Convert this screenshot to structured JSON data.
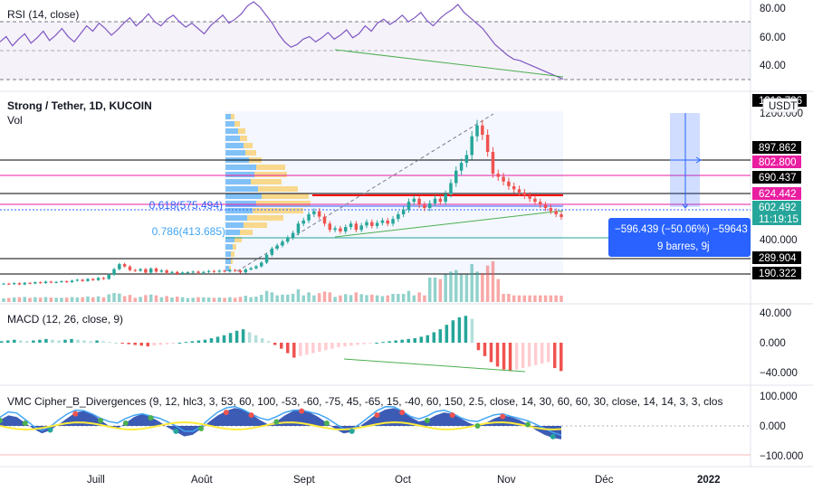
{
  "symbol_title": "Strong / Tether, 1D, KUCOIN",
  "volume_label": "Vol",
  "rsi": {
    "label": "RSI (14, close)",
    "axis_ticks": [
      "80.00",
      "60.00",
      "40.00"
    ],
    "levels": [
      70,
      50,
      30
    ]
  },
  "price_axis": {
    "ticks": [
      "1200.000",
      "400.000"
    ],
    "currency": "USDT",
    "top_partial": "1310.726"
  },
  "price_tags": [
    {
      "value": "897.862",
      "bg": "#000000"
    },
    {
      "value": "802.800",
      "bg": "#e91ea0"
    },
    {
      "value": "690.437",
      "bg": "#000000"
    },
    {
      "value": "624.442",
      "bg": "#e91ea0"
    },
    {
      "value": "289.904",
      "bg": "#000000"
    },
    {
      "value": "190.322",
      "bg": "#000000"
    }
  ],
  "current_price": {
    "value": "602.492",
    "countdown": "11:19:15",
    "bg": "#26a69a"
  },
  "fib_levels": [
    {
      "label": "0.618(575.494)",
      "color": "#2962ff"
    },
    {
      "label": "0.786(413.685)",
      "color": "#42a5f5"
    }
  ],
  "measure_tooltip": {
    "line1": "−596.439 (−50.06%) −59643",
    "line2": "9 barres, 9j"
  },
  "macd": {
    "label": "MACD (12, 26, close, 9)",
    "axis_ticks": [
      "40.000",
      "0.000",
      "−40.000"
    ]
  },
  "cipher": {
    "label": "VMC Cipher_B_Divergences (9, 12, hlc3, 3, 53, 60, 100, -53, -60, -75, 45, -65, 15, -40, 60, 150, 2.5, close, 14, 30, 60, 60, 30, close, 14, 14, 3, 3, clos",
    "axis_ticks": [
      "100.000",
      "0.000",
      "−100.000"
    ]
  },
  "time_axis": [
    "Juill",
    "Août",
    "Sept",
    "Oct",
    "Nov",
    "Déc",
    "2022"
  ],
  "colors": {
    "up": "#26a69a",
    "down": "#ef5350",
    "rsi_line": "#7e57c2",
    "divergence": "#4caf50",
    "magenta": "#e91ea0",
    "fib_red": "#ff0000"
  },
  "chart_data": [
    {
      "type": "line",
      "title": "RSI (14, close)",
      "ylim": [
        27,
        88
      ],
      "series": [
        {
          "values": [
            58,
            62,
            55,
            60,
            64,
            57,
            61,
            66,
            59,
            63,
            68,
            62,
            58,
            64,
            70,
            66,
            72,
            68,
            63,
            67,
            72,
            76,
            70,
            74,
            79,
            73,
            70,
            75,
            78,
            73,
            69,
            72,
            68,
            64,
            70,
            74,
            78,
            72,
            75,
            79,
            85,
            88,
            84,
            78,
            72,
            64,
            58,
            54,
            56,
            60,
            62,
            58,
            61,
            65,
            60,
            63,
            67,
            61,
            64,
            70,
            66,
            72,
            75,
            71,
            74,
            78,
            73,
            76,
            80,
            74,
            70,
            75,
            79,
            82,
            86,
            80,
            76,
            72,
            68,
            62,
            56,
            52,
            48,
            45,
            44,
            42,
            40,
            38,
            36,
            34,
            32,
            30
          ]
        }
      ]
    },
    {
      "type": "line",
      "title": "Strong / Tether, 1D, KUCOIN",
      "ylim": [
        150,
        1310
      ],
      "series": [
        {
          "values": [
            175,
            172,
            178,
            170,
            180,
            176,
            184,
            179,
            188,
            182,
            186,
            190,
            185,
            194,
            200,
            192,
            205,
            198,
            212,
            205,
            232,
            268,
            300,
            285,
            262,
            258,
            268,
            246,
            272,
            252,
            260,
            244,
            250,
            238,
            246,
            248,
            252,
            244,
            250,
            256,
            252,
            258,
            254,
            262,
            258,
            248,
            266,
            274,
            286,
            310,
            360,
            400,
            420,
            445,
            470,
            500,
            560,
            580,
            620,
            640,
            605,
            560,
            520,
            530,
            510,
            538,
            560,
            520,
            548,
            570,
            545,
            565,
            580,
            560,
            590,
            620,
            650,
            700,
            720,
            680,
            660,
            690,
            720,
            700,
            750,
            820,
            900,
            950,
            1000,
            1120,
            1190,
            1130,
            1020,
            880,
            860,
            830,
            800,
            780,
            760,
            740,
            720,
            700,
            680,
            660,
            640,
            620,
            602
          ]
        }
      ]
    },
    {
      "type": "bar",
      "title": "MACD (12, 26, close, 9)",
      "ylim": [
        -50,
        50
      ],
      "series": [
        {
          "values": [
            2,
            3,
            4,
            3,
            2,
            3,
            4,
            5,
            4,
            3,
            4,
            5,
            4,
            3,
            2,
            3,
            2,
            1,
            0,
            -1,
            -2,
            -3,
            -4,
            -5,
            -4,
            -3,
            -2,
            -1,
            0,
            1,
            2,
            3,
            4,
            6,
            8,
            10,
            13,
            16,
            18,
            14,
            10,
            6,
            2,
            -3,
            -8,
            -14,
            -20,
            -18,
            -16,
            -14,
            -12,
            -10,
            -8,
            -6,
            -5,
            -4,
            -3,
            -2,
            -1,
            0,
            1,
            2,
            3,
            4,
            5,
            6,
            8,
            10,
            14,
            18,
            24,
            30,
            34,
            36,
            32,
            -10,
            -18,
            -26,
            -32,
            -36,
            -38,
            -36,
            -34,
            -32,
            -30,
            -28,
            -26,
            -34,
            -38
          ]
        }
      ]
    },
    {
      "type": "area",
      "title": "VMC Cipher_B_Divergences",
      "ylim": [
        -110,
        110
      ],
      "series": [
        {
          "values": [
            20,
            35,
            30,
            10,
            -10,
            -25,
            -15,
            5,
            25,
            45,
            50,
            40,
            20,
            0,
            -10,
            10,
            30,
            40,
            30,
            15,
            -5,
            -20,
            -35,
            -30,
            -10,
            15,
            35,
            50,
            60,
            55,
            40,
            20,
            5,
            15,
            35,
            50,
            55,
            45,
            30,
            10,
            -10,
            -25,
            -20,
            0,
            20,
            40,
            55,
            60,
            50,
            30,
            15,
            20,
            35,
            45,
            40,
            25,
            10,
            0,
            10,
            25,
            35,
            30,
            20,
            5,
            -15,
            -30,
            -40,
            -45
          ]
        }
      ]
    }
  ]
}
